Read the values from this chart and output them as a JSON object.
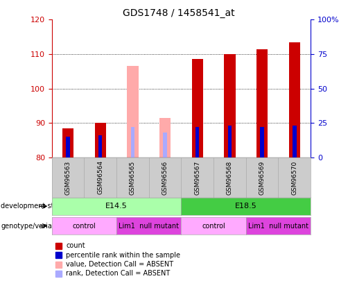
{
  "title": "GDS1748 / 1458541_at",
  "samples": [
    "GSM96563",
    "GSM96564",
    "GSM96565",
    "GSM96566",
    "GSM96567",
    "GSM96568",
    "GSM96569",
    "GSM96570"
  ],
  "count_values": [
    88.5,
    90.0,
    106.5,
    91.5,
    108.5,
    110.0,
    111.5,
    113.5
  ],
  "rank_values": [
    15.0,
    16.0,
    22.0,
    18.0,
    22.0,
    23.0,
    22.0,
    23.0
  ],
  "absent": [
    false,
    false,
    true,
    true,
    false,
    false,
    false,
    false
  ],
  "ylim_left": [
    80,
    120
  ],
  "ylim_right": [
    0,
    100
  ],
  "yticks_left": [
    80,
    90,
    100,
    110,
    120
  ],
  "yticks_right": [
    0,
    25,
    50,
    75,
    100
  ],
  "ytick_labels_right": [
    "0",
    "25",
    "50",
    "75",
    "100%"
  ],
  "bar_color_normal": "#cc0000",
  "bar_color_absent": "#ffaaaa",
  "rank_color_normal": "#0000cc",
  "rank_color_absent": "#aaaaff",
  "dev_stage_row": [
    {
      "label": "E14.5",
      "start": 0,
      "end": 4,
      "color": "#aaffaa"
    },
    {
      "label": "E18.5",
      "start": 4,
      "end": 8,
      "color": "#44cc44"
    }
  ],
  "genotype_row": [
    {
      "label": "control",
      "start": 0,
      "end": 2,
      "color": "#ffaaff"
    },
    {
      "label": "Lim1  null mutant",
      "start": 2,
      "end": 4,
      "color": "#dd44dd"
    },
    {
      "label": "control",
      "start": 4,
      "end": 6,
      "color": "#ffaaff"
    },
    {
      "label": "Lim1  null mutant",
      "start": 6,
      "end": 8,
      "color": "#dd44dd"
    }
  ],
  "legend_items": [
    {
      "label": "count",
      "color": "#cc0000"
    },
    {
      "label": "percentile rank within the sample",
      "color": "#0000cc"
    },
    {
      "label": "value, Detection Call = ABSENT",
      "color": "#ffaaaa"
    },
    {
      "label": "rank, Detection Call = ABSENT",
      "color": "#aaaaff"
    }
  ],
  "bar_width": 0.35,
  "rank_bar_width": 0.12,
  "background_color": "#ffffff",
  "axis_left_color": "#cc0000",
  "axis_right_color": "#0000cc"
}
